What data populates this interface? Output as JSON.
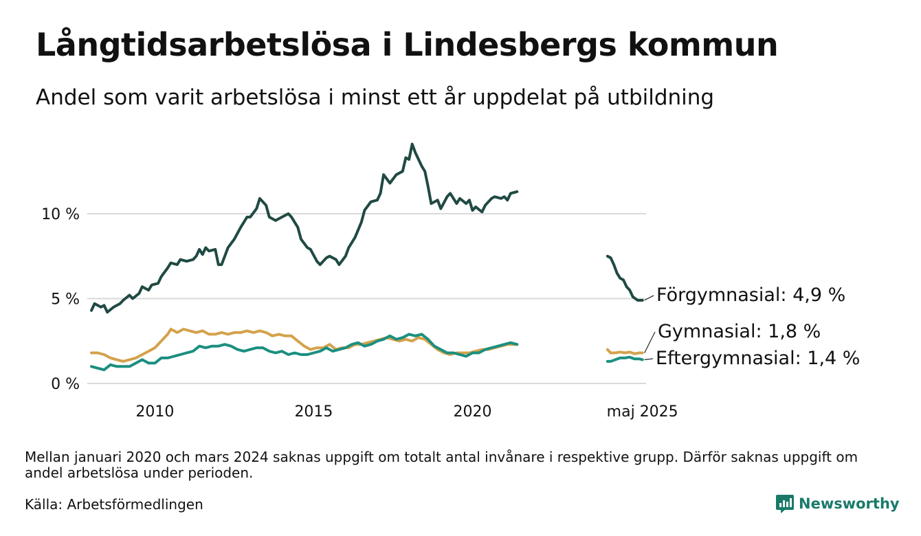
{
  "title": "Långtidsarbetslösa i Lindesbergs kommun",
  "subtitle": "Andel som varit arbetslösa i minst ett år uppdelat på utbildning",
  "note": "Mellan januari 2020 och mars 2024 saknas uppgift om totalt antal invånare i respektive grupp. Därför saknas uppgift om andel arbetslösa under perioden.",
  "source": "Källa: Arbetsförmedlingen",
  "brand": {
    "name": "Newsworthy",
    "color": "#1a7a6a"
  },
  "chart_data": {
    "type": "line",
    "title": "Långtidsarbetslösa i Lindesbergs kommun",
    "subtitle": "Andel som varit arbetslösa i minst ett år uppdelat på utbildning",
    "xlabel": "",
    "ylabel": "",
    "ylim": [
      0,
      14
    ],
    "y_ticks": [
      {
        "value": 0,
        "label": "0 %"
      },
      {
        "value": 5,
        "label": "5 %"
      },
      {
        "value": 10,
        "label": "10 %"
      }
    ],
    "x_ticks": [
      {
        "value": 2010,
        "label": "2010"
      },
      {
        "value": 2015,
        "label": "2015"
      },
      {
        "value": 2020,
        "label": "2020"
      },
      {
        "value": 2025.35,
        "label": "maj 2025"
      }
    ],
    "xlim": [
      2008.0,
      2025.4
    ],
    "grid": true,
    "legend": "end-of-line labels",
    "series": [
      {
        "name": "Förgymnasial",
        "end_label": "Förgymnasial: 4,9 %",
        "color": "#204a44",
        "segments": [
          [
            [
              2008.0,
              4.3
            ],
            [
              2008.1,
              4.7
            ],
            [
              2008.3,
              4.5
            ],
            [
              2008.4,
              4.6
            ],
            [
              2008.5,
              4.2
            ],
            [
              2008.7,
              4.5
            ],
            [
              2008.9,
              4.7
            ],
            [
              2009.0,
              4.9
            ],
            [
              2009.2,
              5.2
            ],
            [
              2009.3,
              5.0
            ],
            [
              2009.5,
              5.3
            ],
            [
              2009.6,
              5.7
            ],
            [
              2009.8,
              5.5
            ],
            [
              2009.9,
              5.8
            ],
            [
              2010.1,
              5.9
            ],
            [
              2010.2,
              6.3
            ],
            [
              2010.4,
              6.8
            ],
            [
              2010.5,
              7.1
            ],
            [
              2010.7,
              7.0
            ],
            [
              2010.8,
              7.3
            ],
            [
              2011.0,
              7.2
            ],
            [
              2011.2,
              7.3
            ],
            [
              2011.3,
              7.5
            ],
            [
              2011.4,
              7.9
            ],
            [
              2011.5,
              7.6
            ],
            [
              2011.6,
              8.0
            ],
            [
              2011.7,
              7.8
            ],
            [
              2011.9,
              7.9
            ],
            [
              2012.0,
              7.0
            ],
            [
              2012.1,
              7.0
            ],
            [
              2012.3,
              8.0
            ],
            [
              2012.5,
              8.5
            ],
            [
              2012.7,
              9.2
            ],
            [
              2012.9,
              9.8
            ],
            [
              2013.0,
              9.8
            ],
            [
              2013.2,
              10.3
            ],
            [
              2013.3,
              10.9
            ],
            [
              2013.5,
              10.5
            ],
            [
              2013.6,
              9.8
            ],
            [
              2013.8,
              9.6
            ],
            [
              2014.0,
              9.8
            ],
            [
              2014.2,
              10.0
            ],
            [
              2014.3,
              9.8
            ],
            [
              2014.5,
              9.2
            ],
            [
              2014.6,
              8.5
            ],
            [
              2014.8,
              8.0
            ],
            [
              2014.9,
              7.9
            ],
            [
              2015.1,
              7.2
            ],
            [
              2015.2,
              7.0
            ],
            [
              2015.4,
              7.4
            ],
            [
              2015.5,
              7.5
            ],
            [
              2015.7,
              7.3
            ],
            [
              2015.8,
              7.0
            ],
            [
              2016.0,
              7.5
            ],
            [
              2016.1,
              8.0
            ],
            [
              2016.3,
              8.6
            ],
            [
              2016.5,
              9.5
            ],
            [
              2016.6,
              10.2
            ],
            [
              2016.8,
              10.7
            ],
            [
              2017.0,
              10.8
            ],
            [
              2017.1,
              11.2
            ],
            [
              2017.2,
              12.3
            ],
            [
              2017.4,
              11.8
            ],
            [
              2017.6,
              12.3
            ],
            [
              2017.8,
              12.5
            ],
            [
              2017.9,
              13.3
            ],
            [
              2018.0,
              13.2
            ],
            [
              2018.1,
              14.1
            ],
            [
              2018.2,
              13.6
            ],
            [
              2018.4,
              12.8
            ],
            [
              2018.5,
              12.5
            ],
            [
              2018.6,
              11.6
            ],
            [
              2018.7,
              10.6
            ],
            [
              2018.9,
              10.8
            ],
            [
              2019.0,
              10.3
            ],
            [
              2019.2,
              11.0
            ],
            [
              2019.3,
              11.2
            ],
            [
              2019.5,
              10.6
            ],
            [
              2019.6,
              10.9
            ],
            [
              2019.8,
              10.6
            ],
            [
              2019.9,
              10.8
            ],
            [
              2020.0,
              10.2
            ],
            [
              2020.1,
              10.4
            ],
            [
              2020.3,
              10.1
            ],
            [
              2020.4,
              10.5
            ],
            [
              2020.6,
              10.9
            ],
            [
              2020.7,
              11.0
            ],
            [
              2020.9,
              10.9
            ],
            [
              2021.0,
              11.0
            ],
            [
              2021.1,
              10.8
            ],
            [
              2021.2,
              11.2
            ],
            [
              2021.4,
              11.3
            ]
          ],
          [
            [
              2024.25,
              7.5
            ],
            [
              2024.35,
              7.4
            ],
            [
              2024.45,
              7.0
            ],
            [
              2024.55,
              6.5
            ],
            [
              2024.65,
              6.2
            ],
            [
              2024.75,
              6.1
            ],
            [
              2024.85,
              5.7
            ],
            [
              2024.95,
              5.5
            ],
            [
              2025.05,
              5.1
            ],
            [
              2025.2,
              4.9
            ],
            [
              2025.35,
              4.9
            ]
          ]
        ]
      },
      {
        "name": "Gymnasial",
        "end_label": "Gymnasial: 1,8 %",
        "color": "#d4a24c",
        "segments": [
          [
            [
              2008.0,
              1.8
            ],
            [
              2008.2,
              1.8
            ],
            [
              2008.4,
              1.7
            ],
            [
              2008.6,
              1.5
            ],
            [
              2008.8,
              1.4
            ],
            [
              2009.0,
              1.3
            ],
            [
              2009.2,
              1.4
            ],
            [
              2009.4,
              1.5
            ],
            [
              2009.6,
              1.7
            ],
            [
              2009.8,
              1.9
            ],
            [
              2010.0,
              2.1
            ],
            [
              2010.2,
              2.5
            ],
            [
              2010.4,
              2.9
            ],
            [
              2010.5,
              3.2
            ],
            [
              2010.7,
              3.0
            ],
            [
              2010.9,
              3.2
            ],
            [
              2011.1,
              3.1
            ],
            [
              2011.3,
              3.0
            ],
            [
              2011.5,
              3.1
            ],
            [
              2011.7,
              2.9
            ],
            [
              2011.9,
              2.9
            ],
            [
              2012.1,
              3.0
            ],
            [
              2012.3,
              2.9
            ],
            [
              2012.5,
              3.0
            ],
            [
              2012.7,
              3.0
            ],
            [
              2012.9,
              3.1
            ],
            [
              2013.1,
              3.0
            ],
            [
              2013.3,
              3.1
            ],
            [
              2013.5,
              3.0
            ],
            [
              2013.7,
              2.8
            ],
            [
              2013.9,
              2.9
            ],
            [
              2014.1,
              2.8
            ],
            [
              2014.3,
              2.8
            ],
            [
              2014.5,
              2.5
            ],
            [
              2014.7,
              2.2
            ],
            [
              2014.9,
              2.0
            ],
            [
              2015.1,
              2.1
            ],
            [
              2015.3,
              2.1
            ],
            [
              2015.5,
              2.3
            ],
            [
              2015.7,
              2.0
            ],
            [
              2015.9,
              2.1
            ],
            [
              2016.1,
              2.1
            ],
            [
              2016.3,
              2.3
            ],
            [
              2016.5,
              2.3
            ],
            [
              2016.7,
              2.4
            ],
            [
              2016.9,
              2.5
            ],
            [
              2017.1,
              2.6
            ],
            [
              2017.3,
              2.7
            ],
            [
              2017.5,
              2.6
            ],
            [
              2017.7,
              2.5
            ],
            [
              2017.9,
              2.6
            ],
            [
              2018.1,
              2.5
            ],
            [
              2018.3,
              2.7
            ],
            [
              2018.5,
              2.6
            ],
            [
              2018.7,
              2.3
            ],
            [
              2018.9,
              2.0
            ],
            [
              2019.1,
              1.8
            ],
            [
              2019.3,
              1.7
            ],
            [
              2019.5,
              1.8
            ],
            [
              2019.7,
              1.8
            ],
            [
              2019.9,
              1.8
            ],
            [
              2020.1,
              1.9
            ],
            [
              2020.3,
              2.0
            ],
            [
              2020.5,
              2.0
            ],
            [
              2020.7,
              2.1
            ],
            [
              2020.9,
              2.2
            ],
            [
              2021.1,
              2.3
            ],
            [
              2021.4,
              2.3
            ]
          ],
          [
            [
              2024.25,
              2.0
            ],
            [
              2024.35,
              1.8
            ],
            [
              2024.5,
              1.8
            ],
            [
              2024.65,
              1.85
            ],
            [
              2024.8,
              1.8
            ],
            [
              2024.95,
              1.85
            ],
            [
              2025.1,
              1.75
            ],
            [
              2025.25,
              1.8
            ],
            [
              2025.35,
              1.8
            ]
          ]
        ]
      },
      {
        "name": "Eftergymnasial",
        "end_label": "Eftergymnasial: 1,4 %",
        "color": "#1b8f80",
        "segments": [
          [
            [
              2008.0,
              1.0
            ],
            [
              2008.2,
              0.9
            ],
            [
              2008.4,
              0.8
            ],
            [
              2008.6,
              1.1
            ],
            [
              2008.8,
              1.0
            ],
            [
              2009.0,
              1.0
            ],
            [
              2009.2,
              1.0
            ],
            [
              2009.4,
              1.2
            ],
            [
              2009.6,
              1.4
            ],
            [
              2009.8,
              1.2
            ],
            [
              2010.0,
              1.2
            ],
            [
              2010.2,
              1.5
            ],
            [
              2010.4,
              1.5
            ],
            [
              2010.6,
              1.6
            ],
            [
              2010.8,
              1.7
            ],
            [
              2011.0,
              1.8
            ],
            [
              2011.2,
              1.9
            ],
            [
              2011.4,
              2.2
            ],
            [
              2011.6,
              2.1
            ],
            [
              2011.8,
              2.2
            ],
            [
              2012.0,
              2.2
            ],
            [
              2012.2,
              2.3
            ],
            [
              2012.4,
              2.2
            ],
            [
              2012.6,
              2.0
            ],
            [
              2012.8,
              1.9
            ],
            [
              2013.0,
              2.0
            ],
            [
              2013.2,
              2.1
            ],
            [
              2013.4,
              2.1
            ],
            [
              2013.6,
              1.9
            ],
            [
              2013.8,
              1.8
            ],
            [
              2014.0,
              1.9
            ],
            [
              2014.2,
              1.7
            ],
            [
              2014.4,
              1.8
            ],
            [
              2014.6,
              1.7
            ],
            [
              2014.8,
              1.7
            ],
            [
              2015.0,
              1.8
            ],
            [
              2015.2,
              1.9
            ],
            [
              2015.4,
              2.1
            ],
            [
              2015.6,
              1.9
            ],
            [
              2015.8,
              2.0
            ],
            [
              2016.0,
              2.1
            ],
            [
              2016.2,
              2.3
            ],
            [
              2016.4,
              2.4
            ],
            [
              2016.6,
              2.2
            ],
            [
              2016.8,
              2.3
            ],
            [
              2017.0,
              2.5
            ],
            [
              2017.2,
              2.6
            ],
            [
              2017.4,
              2.8
            ],
            [
              2017.6,
              2.6
            ],
            [
              2017.8,
              2.7
            ],
            [
              2018.0,
              2.9
            ],
            [
              2018.2,
              2.8
            ],
            [
              2018.4,
              2.9
            ],
            [
              2018.6,
              2.6
            ],
            [
              2018.8,
              2.2
            ],
            [
              2019.0,
              2.0
            ],
            [
              2019.2,
              1.8
            ],
            [
              2019.4,
              1.8
            ],
            [
              2019.6,
              1.7
            ],
            [
              2019.8,
              1.6
            ],
            [
              2020.0,
              1.8
            ],
            [
              2020.2,
              1.8
            ],
            [
              2020.4,
              2.0
            ],
            [
              2020.6,
              2.1
            ],
            [
              2020.8,
              2.2
            ],
            [
              2021.0,
              2.3
            ],
            [
              2021.2,
              2.4
            ],
            [
              2021.4,
              2.3
            ]
          ],
          [
            [
              2024.25,
              1.3
            ],
            [
              2024.35,
              1.3
            ],
            [
              2024.5,
              1.4
            ],
            [
              2024.65,
              1.5
            ],
            [
              2024.8,
              1.5
            ],
            [
              2024.95,
              1.55
            ],
            [
              2025.1,
              1.45
            ],
            [
              2025.25,
              1.45
            ],
            [
              2025.35,
              1.4
            ]
          ]
        ]
      }
    ]
  }
}
